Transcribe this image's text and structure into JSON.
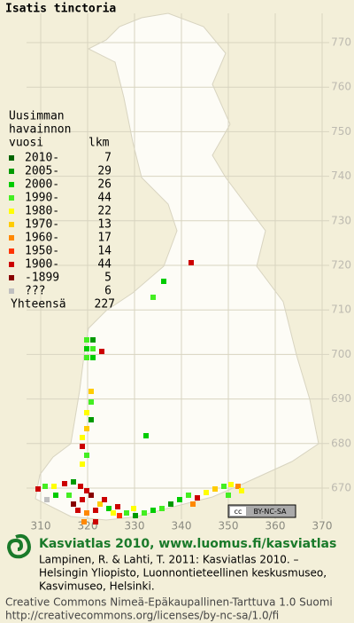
{
  "title": "Isatis tinctoria",
  "legend": {
    "header": [
      "Uusimman",
      "havainnon",
      "vuosi"
    ],
    "count_header": "lkm",
    "rows": [
      {
        "label": "2010-",
        "count": 7,
        "color": "#006400"
      },
      {
        "label": "2005-",
        "count": 29,
        "color": "#009a00"
      },
      {
        "label": "2000-",
        "count": 26,
        "color": "#00cc00"
      },
      {
        "label": "1990-",
        "count": 44,
        "color": "#44ee22"
      },
      {
        "label": "1980-",
        "count": 22,
        "color": "#ffff00"
      },
      {
        "label": "1970-",
        "count": 13,
        "color": "#ffcc00"
      },
      {
        "label": "1960-",
        "count": 17,
        "color": "#ff8800"
      },
      {
        "label": "1950-",
        "count": 14,
        "color": "#ff3300"
      },
      {
        "label": "1900-",
        "count": 44,
        "color": "#cc0000"
      },
      {
        "label": "-1899",
        "count": 5,
        "color": "#880000"
      },
      {
        "label": "???",
        "count": 6,
        "color": "#c0c0c0"
      }
    ],
    "total_label": "Yhteensä",
    "total": 227
  },
  "grid": {
    "x_labels": [
      310,
      320,
      330,
      340,
      350,
      360,
      370
    ],
    "y_labels": [
      770,
      760,
      750,
      740,
      730,
      720,
      710,
      700,
      690,
      680,
      670
    ]
  },
  "badge": "BY-NC-SA",
  "footer": {
    "heading": "Kasviatlas 2010, www.luomus.fi/kasviatlas",
    "citation": [
      "Lampinen, R. & Lahti, T. 2011: Kasviatlas 2010. –",
      "Helsingin Yliopisto, Luonnontieteellinen keskusmuseo,",
      "Kasvimuseo, Helsinki."
    ],
    "license": [
      "Creative Commons Nimeä-Epäkaupallinen-Tarttuva 1.0 Suomi",
      "http://creativecommons.org/licenses/by-nc-sa/1.0/fi"
    ]
  }
}
